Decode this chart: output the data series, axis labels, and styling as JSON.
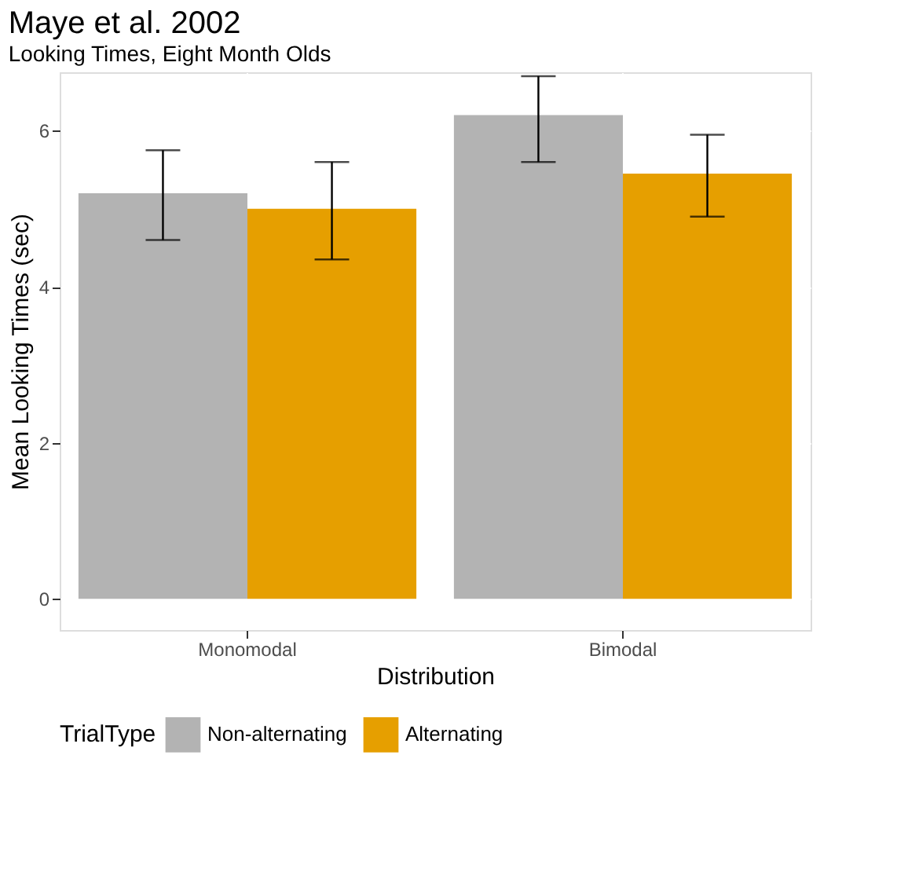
{
  "chart_data": {
    "type": "bar",
    "title": "Maye et al. 2002",
    "subtitle": "Looking Times, Eight Month Olds",
    "xlabel": "Distribution",
    "ylabel": "Mean Looking Times (sec)",
    "legend_title": "TrialType",
    "categories": [
      "Monomodal",
      "Bimodal"
    ],
    "series": [
      {
        "name": "Non-alternating",
        "color": "#b3b3b3",
        "values": [
          5.2,
          6.2
        ],
        "errors": [
          [
            4.6,
            5.75
          ],
          [
            5.6,
            6.7
          ]
        ]
      },
      {
        "name": "Alternating",
        "color": "#e69f00",
        "values": [
          5.0,
          5.45
        ],
        "errors": [
          [
            4.35,
            5.6
          ],
          [
            4.9,
            5.95
          ]
        ]
      }
    ],
    "ylim": [
      -0.4,
      6.75
    ],
    "yticks": [
      0,
      2,
      4,
      6
    ],
    "grid": true,
    "legend": "bottom"
  }
}
